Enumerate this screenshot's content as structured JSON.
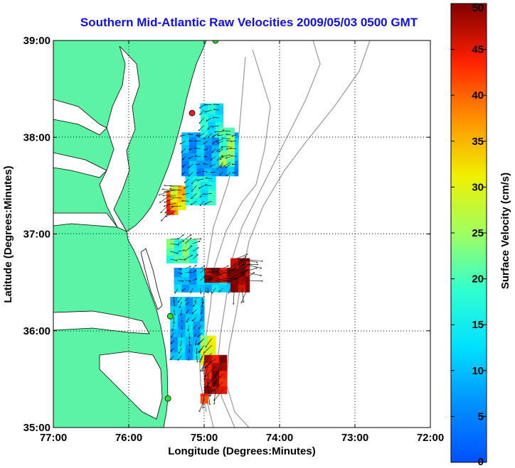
{
  "title": "Southern Mid-Atlantic Raw Velocities 2009/05/03 0500 GMT",
  "map": {
    "xlabel": "Longitude (Degrees:Minutes)",
    "ylabel": "Latitude (Degrees:Minutes)",
    "xlim": [
      -77,
      -72
    ],
    "ylim": [
      35,
      39
    ],
    "x_ticks": [
      {
        "value": -77,
        "label": "77:00"
      },
      {
        "value": -76,
        "label": "76:00"
      },
      {
        "value": -75,
        "label": "75:00"
      },
      {
        "value": -74,
        "label": "74:00"
      },
      {
        "value": -73,
        "label": "73:00"
      },
      {
        "value": -72,
        "label": "72:00"
      }
    ],
    "y_ticks": [
      {
        "value": 35,
        "label": "35:00"
      },
      {
        "value": 36,
        "label": "36:00"
      },
      {
        "value": 37,
        "label": "37:00"
      },
      {
        "value": 38,
        "label": "38:00"
      },
      {
        "value": 39,
        "label": "39:00"
      }
    ],
    "grid": true,
    "land_color": "#5cf4a4",
    "water_color": "#ffffff",
    "bathymetry_color": "#999999",
    "radar_sites": [
      {
        "lon": -74.85,
        "lat": 39.0,
        "color": "#30e030"
      },
      {
        "lon": -75.16,
        "lat": 38.25,
        "color": "#e02020"
      },
      {
        "lon": -75.45,
        "lat": 36.15,
        "color": "#30e030"
      },
      {
        "lon": -75.48,
        "lat": 35.3,
        "color": "#30e030"
      }
    ]
  },
  "colorbar": {
    "label": "Surface Velocity (cm/s)",
    "min": 0,
    "max": 50,
    "ticks": [
      "0",
      "5",
      "10",
      "15",
      "20",
      "25",
      "30",
      "35",
      "40",
      "45",
      "50"
    ],
    "colormap": "jet"
  },
  "chart_data": {
    "type": "heatmap",
    "title": "Southern Mid-Atlantic Raw Velocities 2009/05/03 0500 GMT",
    "xlabel": "Longitude (Degrees:Minutes)",
    "ylabel": "Latitude (Degrees:Minutes)",
    "xlim": [
      -77,
      -72
    ],
    "ylim": [
      35,
      39
    ],
    "value_label": "Surface Velocity (cm/s)",
    "value_range": [
      0,
      50
    ],
    "grid_spacing_deg": [
      0.1,
      0.08
    ],
    "regions": [
      {
        "lon": [
          -75.5,
          -75.35
        ],
        "lat": [
          37.2,
          37.45
        ],
        "speed": 40
      },
      {
        "lon": [
          -75.45,
          -75.25
        ],
        "lat": [
          37.25,
          37.5
        ],
        "speed": 32
      },
      {
        "lon": [
          -75.25,
          -74.85
        ],
        "lat": [
          37.3,
          37.6
        ],
        "speed": 16
      },
      {
        "lon": [
          -75.3,
          -74.55
        ],
        "lat": [
          37.6,
          38.05
        ],
        "speed": 8
      },
      {
        "lon": [
          -75.05,
          -74.75
        ],
        "lat": [
          38.0,
          38.35
        ],
        "speed": 15
      },
      {
        "lon": [
          -74.8,
          -74.6
        ],
        "lat": [
          37.7,
          38.1
        ],
        "speed": 22
      },
      {
        "lon": [
          -75.5,
          -75.1
        ],
        "lat": [
          36.7,
          36.95
        ],
        "speed": 20
      },
      {
        "lon": [
          -75.4,
          -74.95
        ],
        "lat": [
          36.4,
          36.65
        ],
        "speed": 9
      },
      {
        "lon": [
          -75.0,
          -74.6
        ],
        "lat": [
          36.4,
          36.65
        ],
        "speed": 12
      },
      {
        "lon": [
          -75.0,
          -74.5
        ],
        "lat": [
          36.5,
          36.65
        ],
        "speed": 48
      },
      {
        "lon": [
          -74.65,
          -74.4
        ],
        "lat": [
          36.4,
          36.75
        ],
        "speed": 50
      },
      {
        "lon": [
          -75.45,
          -75.0
        ],
        "lat": [
          35.7,
          36.35
        ],
        "speed": 10
      },
      {
        "lon": [
          -75.05,
          -74.85
        ],
        "lat": [
          35.65,
          35.95
        ],
        "speed": 28
      },
      {
        "lon": [
          -75.0,
          -74.7
        ],
        "lat": [
          35.35,
          35.75
        ],
        "speed": 47
      },
      {
        "lon": [
          -75.05,
          -74.95
        ],
        "lat": [
          35.25,
          35.35
        ],
        "speed": 45
      }
    ]
  }
}
